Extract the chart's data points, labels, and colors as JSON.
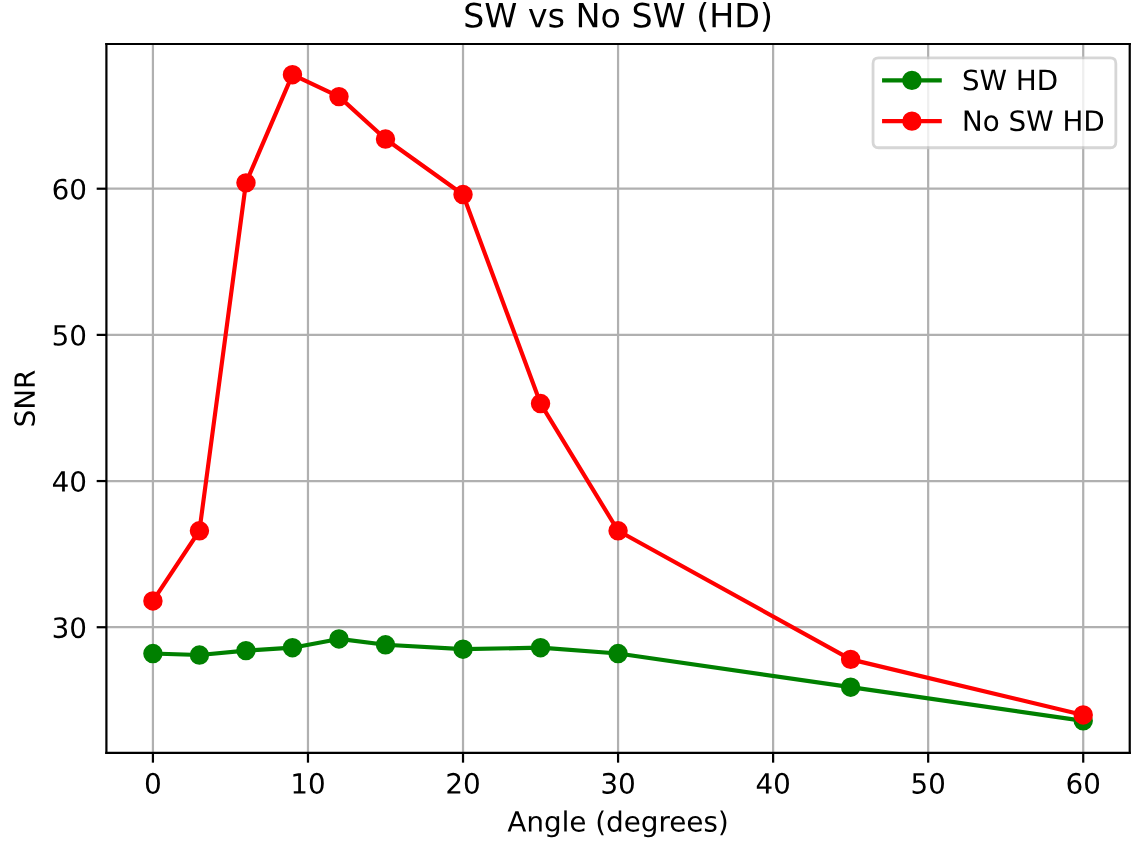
{
  "chart_data": {
    "type": "line",
    "title": "SW vs No SW (HD)",
    "xlabel": "Angle (degrees)",
    "ylabel": "SNR",
    "x": [
      0,
      3,
      6,
      9,
      12,
      15,
      20,
      25,
      30,
      45,
      60
    ],
    "series": [
      {
        "name": "SW HD",
        "color": "#008000",
        "values": [
          28.2,
          28.1,
          28.4,
          28.6,
          29.2,
          28.8,
          28.5,
          28.6,
          28.2,
          25.9,
          23.6
        ]
      },
      {
        "name": "No SW HD",
        "color": "#ff0000",
        "values": [
          31.8,
          36.6,
          60.4,
          67.8,
          66.3,
          63.4,
          59.6,
          45.3,
          36.6,
          27.8,
          24.0
        ]
      }
    ],
    "xlim": [
      -3,
      63
    ],
    "ylim": [
      21.4,
      69.9
    ],
    "xticks": [
      0,
      10,
      20,
      30,
      40,
      50,
      60
    ],
    "yticks": [
      30,
      40,
      50,
      60
    ],
    "grid": true,
    "legend": "top right",
    "marker": "circle",
    "line_style": "solid"
  }
}
